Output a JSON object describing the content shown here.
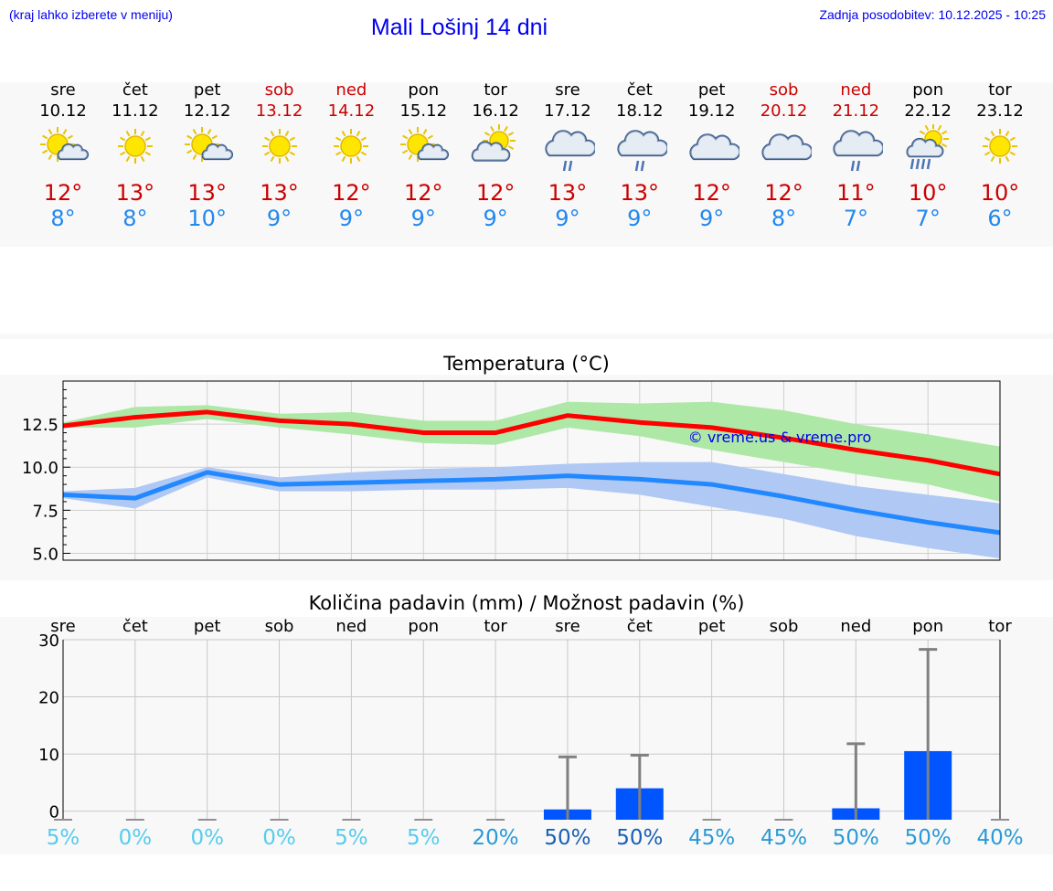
{
  "header": {
    "hint": "(kraj lahko izberete v meniju)",
    "title": "Mali Lošinj 14 dni",
    "updated": "Zadnja posodobitev: 10.12.2025 - 10:25"
  },
  "colors": {
    "link": "#0000ee",
    "max": "#cc0000",
    "min": "#2288ee",
    "max_line": "#ff0000",
    "max_band": "#aee8a6",
    "min_line": "#2288ff",
    "min_band": "#b0c8f4",
    "bar": "#0055ff",
    "whisker": "#808080"
  },
  "forecast": {
    "days": [
      {
        "name": "sre",
        "date": "10.12",
        "weekend": false,
        "icon": "sun-cloud-icon",
        "max": "12°",
        "min": "8°"
      },
      {
        "name": "čet",
        "date": "11.12",
        "weekend": false,
        "icon": "sun-icon",
        "max": "13°",
        "min": "8°"
      },
      {
        "name": "pet",
        "date": "12.12",
        "weekend": false,
        "icon": "sun-cloud-icon",
        "max": "13°",
        "min": "10°"
      },
      {
        "name": "sob",
        "date": "13.12",
        "weekend": true,
        "icon": "sun-icon",
        "max": "13°",
        "min": "9°"
      },
      {
        "name": "ned",
        "date": "14.12",
        "weekend": true,
        "icon": "sun-icon",
        "max": "12°",
        "min": "9°"
      },
      {
        "name": "pon",
        "date": "15.12",
        "weekend": false,
        "icon": "sun-cloud-icon",
        "max": "12°",
        "min": "9°"
      },
      {
        "name": "tor",
        "date": "16.12",
        "weekend": false,
        "icon": "cloud-sun-icon",
        "max": "12°",
        "min": "9°"
      },
      {
        "name": "sre",
        "date": "17.12",
        "weekend": false,
        "icon": "cloud-rain-icon",
        "max": "13°",
        "min": "9°"
      },
      {
        "name": "čet",
        "date": "18.12",
        "weekend": false,
        "icon": "cloud-rain-icon",
        "max": "13°",
        "min": "9°"
      },
      {
        "name": "pet",
        "date": "19.12",
        "weekend": false,
        "icon": "cloud-icon",
        "max": "12°",
        "min": "9°"
      },
      {
        "name": "sob",
        "date": "20.12",
        "weekend": true,
        "icon": "cloud-icon",
        "max": "12°",
        "min": "8°"
      },
      {
        "name": "ned",
        "date": "21.12",
        "weekend": true,
        "icon": "cloud-rain-icon",
        "max": "11°",
        "min": "7°"
      },
      {
        "name": "pon",
        "date": "22.12",
        "weekend": false,
        "icon": "sun-cloud-rain-icon",
        "max": "10°",
        "min": "7°"
      },
      {
        "name": "tor",
        "date": "23.12",
        "weekend": false,
        "icon": "sun-icon",
        "max": "10°",
        "min": "6°"
      }
    ]
  },
  "chart_data": [
    {
      "type": "line",
      "title": "Temperatura (°C)",
      "watermark": "© vreme.us & vreme.pro",
      "ylim": [
        4.6,
        15.0
      ],
      "yticks": [
        5.0,
        7.5,
        10.0,
        12.5
      ],
      "ytick_labels": [
        "5.0",
        "7.5",
        "10.0",
        "12.5"
      ],
      "x": [
        0,
        1,
        2,
        3,
        4,
        5,
        6,
        7,
        8,
        9,
        10,
        11,
        12,
        13
      ],
      "series": [
        {
          "name": "max",
          "values": [
            12.4,
            12.9,
            13.2,
            12.7,
            12.5,
            12.0,
            12.0,
            13.0,
            12.6,
            12.3,
            11.7,
            11.0,
            10.4,
            9.6
          ],
          "band_low": [
            12.3,
            12.3,
            12.8,
            12.3,
            11.9,
            11.4,
            11.3,
            12.3,
            11.8,
            11.0,
            10.3,
            9.6,
            9.0,
            8.0
          ],
          "band_high": [
            12.6,
            13.5,
            13.6,
            13.1,
            13.2,
            12.7,
            12.7,
            13.8,
            13.7,
            13.8,
            13.3,
            12.5,
            11.9,
            11.2
          ]
        },
        {
          "name": "min",
          "values": [
            8.4,
            8.2,
            9.7,
            9.0,
            9.1,
            9.2,
            9.3,
            9.5,
            9.3,
            9.0,
            8.3,
            7.5,
            6.8,
            6.2
          ],
          "band_low": [
            8.2,
            7.6,
            9.4,
            8.6,
            8.6,
            8.7,
            8.7,
            8.8,
            8.4,
            7.7,
            7.0,
            6.0,
            5.3,
            4.7
          ],
          "band_high": [
            8.6,
            8.8,
            10.0,
            9.4,
            9.7,
            9.9,
            10.0,
            10.2,
            10.3,
            10.3,
            9.6,
            8.9,
            8.4,
            7.9
          ]
        }
      ]
    },
    {
      "type": "bar",
      "title": "Količina padavin (mm) / Možnost padavin (%)",
      "categories": [
        "sre",
        "čet",
        "pet",
        "sob",
        "ned",
        "pon",
        "tor",
        "sre",
        "čet",
        "pet",
        "sob",
        "ned",
        "pon",
        "tor"
      ],
      "ylim": [
        -1.5,
        30
      ],
      "yticks": [
        0,
        10,
        20,
        30
      ],
      "ytick_labels": [
        "0",
        "10",
        "20",
        "30"
      ],
      "values": [
        0,
        0,
        0,
        0,
        0,
        0,
        0,
        0.3,
        4.0,
        0,
        0,
        0.5,
        10.5,
        0
      ],
      "whisker_high": [
        0,
        0,
        0,
        0,
        0,
        0,
        0,
        9.5,
        9.8,
        0,
        0,
        11.8,
        28.3,
        0
      ],
      "probability": [
        "5%",
        "0%",
        "0%",
        "0%",
        "5%",
        "5%",
        "20%",
        "50%",
        "50%",
        "45%",
        "45%",
        "50%",
        "50%",
        "40%"
      ],
      "probability_colors": [
        "#55ccee",
        "#55ccee",
        "#55ccee",
        "#55ccee",
        "#55ccee",
        "#55ccee",
        "#2a9ad6",
        "#1a5fb5",
        "#1a5fb5",
        "#2a9ad6",
        "#2a9ad6",
        "#2a9ad6",
        "#2a9ad6",
        "#2a9ad6"
      ]
    }
  ]
}
